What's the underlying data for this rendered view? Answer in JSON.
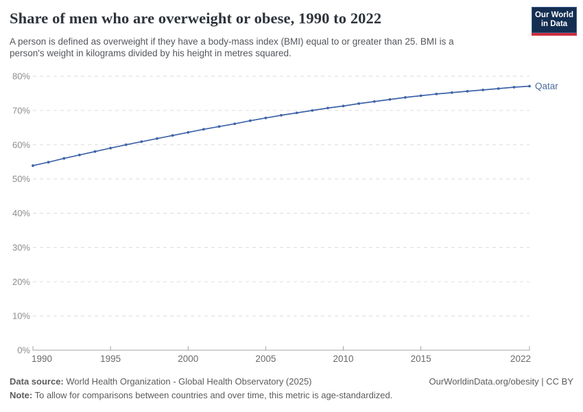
{
  "header": {
    "title": "Share of men who are overweight or obese, 1990 to 2022",
    "subtitle_line1": "A person is defined as overweight if they have a body-mass index (BMI) equal to or greater than 25. BMI is a",
    "subtitle_line2": "person's weight in kilograms divided by his height in metres squared.",
    "logo_line1": "Our World",
    "logo_line2": "in Data"
  },
  "chart_data": {
    "type": "line",
    "title": "Share of men who are overweight or obese, 1990 to 2022",
    "xlabel": "",
    "ylabel": "",
    "xlim": [
      1990,
      2022
    ],
    "ylim": [
      0,
      80
    ],
    "xticks": [
      1990,
      1995,
      2000,
      2005,
      2010,
      2015,
      2022
    ],
    "yticks": [
      0,
      10,
      20,
      30,
      40,
      50,
      60,
      70,
      80
    ],
    "ytick_suffix": "%",
    "grid": "horizontal-dashed",
    "legend": "end-of-line-label",
    "x": [
      1990,
      1991,
      1992,
      1993,
      1994,
      1995,
      1996,
      1997,
      1998,
      1999,
      2000,
      2001,
      2002,
      2003,
      2004,
      2005,
      2006,
      2007,
      2008,
      2009,
      2010,
      2011,
      2012,
      2013,
      2014,
      2015,
      2016,
      2017,
      2018,
      2019,
      2020,
      2021,
      2022
    ],
    "series": [
      {
        "name": "Qatar",
        "values": [
          53.9,
          54.9,
          56.0,
          57.0,
          58.0,
          59.0,
          60.0,
          60.9,
          61.8,
          62.7,
          63.6,
          64.5,
          65.3,
          66.1,
          67.0,
          67.8,
          68.6,
          69.3,
          70.0,
          70.7,
          71.3,
          72.0,
          72.6,
          73.2,
          73.8,
          74.3,
          74.8,
          75.2,
          75.6,
          76.0,
          76.4,
          76.8,
          77.1
        ]
      }
    ]
  },
  "colors": {
    "line": "#3d63a8",
    "end_label": "#4c6a9c",
    "grid": "#dbdbdb",
    "axis": "#a3a3a3",
    "ytick_label": "#8c8c8c",
    "xtick_label": "#696969",
    "logo_bg": "#132e51",
    "logo_accent": "#ce2e3f"
  },
  "footer": {
    "source_label": "Data source:",
    "source_text": " World Health Organization - Global Health Observatory (2025)",
    "attribution": "OurWorldinData.org/obesity | CC BY",
    "note_label": "Note:",
    "note_text": " To allow for comparisons between countries and over time, this metric is age-standardized."
  }
}
